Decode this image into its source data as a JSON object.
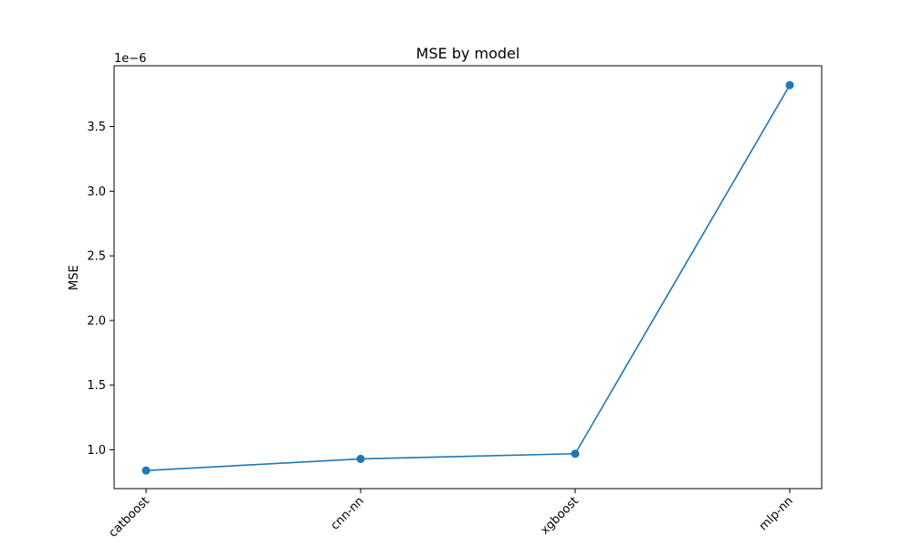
{
  "chart_data": {
    "type": "line",
    "title": "MSE by model",
    "xlabel": "",
    "ylabel": "MSE",
    "y_offset_label": "1e−6",
    "categories": [
      "catboost",
      "cnn-nn",
      "xgboost",
      "mlp-nn"
    ],
    "series": [
      {
        "values": [
          8.4e-07,
          9.3e-07,
          9.7e-07,
          3.82e-06
        ],
        "color": "#1f77b4",
        "marker": "circle"
      }
    ],
    "ylim": [
      7e-07,
      3.97e-06
    ],
    "yticks": [
      1e-06,
      1.5e-06,
      2e-06,
      2.5e-06,
      3e-06,
      3.5e-06
    ],
    "ytick_labels": [
      "1.0",
      "1.5",
      "2.0",
      "2.5",
      "3.0",
      "3.5"
    ],
    "xtick_rotation": 45,
    "grid": false,
    "legend": "none"
  }
}
